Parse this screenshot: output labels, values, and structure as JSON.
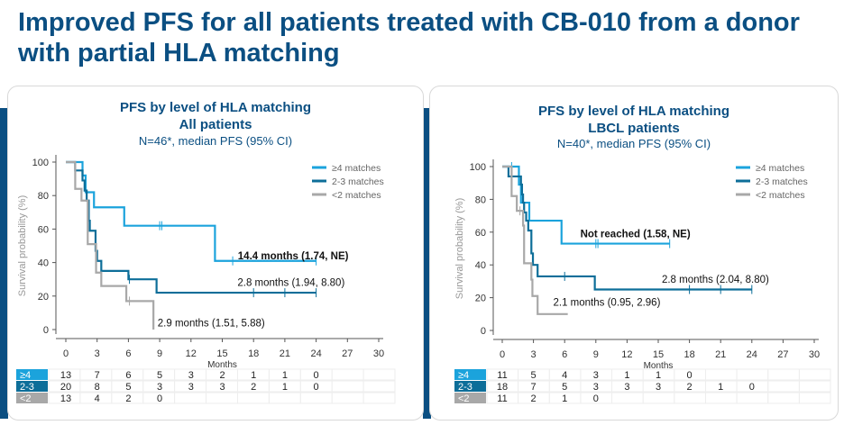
{
  "title": "Improved PFS for all patients treated with CB-010 from a donor with partial HLA matching",
  "colors": {
    "ge4": "#1ba3dc",
    "m23": "#0d6e99",
    "lt2": "#a8a8a8",
    "brand": "#0b4f82"
  },
  "chart_data": [
    {
      "type": "line",
      "title": "PFS by level of HLA matching",
      "subtitle": "All patients",
      "note": "N=46*, median PFS (95% CI)",
      "xlabel": "Months",
      "ylabel": "Survival probability (%)",
      "xlim": [
        0,
        30
      ],
      "ylim": [
        0,
        100
      ],
      "xticks": [
        "0",
        "3",
        "6",
        "9",
        "12",
        "15",
        "18",
        "21",
        "24",
        "27",
        "30"
      ],
      "yticks": [
        "0",
        "20",
        "40",
        "60",
        "80",
        "100"
      ],
      "legend": [
        "≥4 matches",
        "2-3 matches",
        "<2 matches"
      ],
      "legend_position": "top-right",
      "series": [
        {
          "name": "≥4 matches",
          "key": "ge4",
          "steps": [
            [
              0,
              100
            ],
            [
              1.6,
              92
            ],
            [
              1.9,
              82
            ],
            [
              2.7,
              73
            ],
            [
              5.6,
              62
            ],
            [
              14.3,
              41
            ],
            [
              24,
              41
            ]
          ],
          "censors": [
            [
              9.0,
              62
            ],
            [
              9.2,
              62
            ],
            [
              16.0,
              41
            ],
            [
              24,
              41
            ]
          ],
          "annotation": "14.4 months (1.74, NE)",
          "bold": true,
          "ann_at": [
            21.8,
            42
          ]
        },
        {
          "name": "2-3 matches",
          "key": "m23",
          "steps": [
            [
              0,
              100
            ],
            [
              0.9,
              95
            ],
            [
              1.6,
              89
            ],
            [
              1.8,
              83
            ],
            [
              2.0,
              77
            ],
            [
              2.2,
              65
            ],
            [
              2.3,
              59
            ],
            [
              2.85,
              47
            ],
            [
              3.0,
              41
            ],
            [
              3.4,
              35
            ],
            [
              6.0,
              30
            ],
            [
              8.7,
              22
            ],
            [
              24,
              22
            ]
          ],
          "censors": [
            [
              6.1,
              30
            ],
            [
              18,
              22
            ],
            [
              21,
              22
            ],
            [
              24,
              22
            ]
          ],
          "annotation": "2.8 months (1.94, 8.80)",
          "bold": false,
          "ann_at": [
            21.6,
            26
          ]
        },
        {
          "name": "<2 matches",
          "key": "lt2",
          "steps": [
            [
              0,
              100
            ],
            [
              0.9,
              84
            ],
            [
              1.5,
              77
            ],
            [
              2.1,
              51
            ],
            [
              2.9,
              34
            ],
            [
              3.4,
              26
            ],
            [
              5.8,
              17
            ],
            [
              8.4,
              0
            ]
          ],
          "censors": [
            [
              6.1,
              17
            ]
          ],
          "annotation": "2.9 months (1.51, 5.88)",
          "bold": false,
          "ann_at": [
            8.8,
            2
          ]
        }
      ],
      "risk_table": {
        "rows": [
          {
            "label": "≥4",
            "key": "ge4",
            "values": [
              "13",
              "7",
              "6",
              "5",
              "3",
              "2",
              "1",
              "1",
              "0"
            ]
          },
          {
            "label": "2-3",
            "key": "m23",
            "values": [
              "20",
              "8",
              "5",
              "3",
              "3",
              "3",
              "2",
              "1",
              "0"
            ]
          },
          {
            "label": "<2",
            "key": "lt2",
            "values": [
              "13",
              "4",
              "2",
              "0"
            ]
          }
        ]
      }
    },
    {
      "type": "line",
      "title": "PFS by level of HLA matching",
      "subtitle": "LBCL patients",
      "note": "N=40*, median PFS (95% CI)",
      "xlabel": "Months",
      "ylabel": "Survival probability (%)",
      "xlim": [
        0,
        30
      ],
      "ylim": [
        0,
        100
      ],
      "xticks": [
        "0",
        "3",
        "6",
        "9",
        "12",
        "15",
        "18",
        "21",
        "24",
        "27",
        "30"
      ],
      "yticks": [
        "0",
        "20",
        "40",
        "60",
        "80",
        "100"
      ],
      "legend": [
        "≥4 matches",
        "2-3 matches",
        "<2 matches"
      ],
      "legend_position": "top-right",
      "series": [
        {
          "name": "≥4 matches",
          "key": "ge4",
          "steps": [
            [
              0,
              100
            ],
            [
              1.6,
              89
            ],
            [
              1.8,
              78
            ],
            [
              2.6,
              67
            ],
            [
              5.7,
              53
            ],
            [
              16.1,
              53
            ]
          ],
          "censors": [
            [
              0.9,
              100
            ],
            [
              9.0,
              53
            ],
            [
              9.2,
              53
            ],
            [
              16.1,
              53
            ]
          ],
          "annotation": "Not reached  (1.58, NE)",
          "bold": true,
          "ann_at": [
            12.8,
            57
          ]
        },
        {
          "name": "2-3 matches",
          "key": "m23",
          "steps": [
            [
              0,
              100
            ],
            [
              0.6,
              94
            ],
            [
              1.8,
              89
            ],
            [
              1.9,
              83
            ],
            [
              2.0,
              78
            ],
            [
              2.1,
              72
            ],
            [
              2.3,
              67
            ],
            [
              2.5,
              61
            ],
            [
              2.8,
              47
            ],
            [
              2.95,
              40
            ],
            [
              3.4,
              33
            ],
            [
              8.9,
              25
            ],
            [
              24,
              25
            ]
          ],
          "censors": [
            [
              6.0,
              33
            ],
            [
              18,
              25
            ],
            [
              21,
              25
            ],
            [
              24,
              25
            ]
          ],
          "annotation": "2.8 months (2.04, 8.80)",
          "bold": false,
          "ann_at": [
            20.5,
            29
          ]
        },
        {
          "name": "<2 matches",
          "key": "lt2",
          "steps": [
            [
              0,
              100
            ],
            [
              0.9,
              82
            ],
            [
              1.4,
              73
            ],
            [
              2.0,
              64
            ],
            [
              2.1,
              41
            ],
            [
              2.8,
              31
            ],
            [
              2.9,
              21
            ],
            [
              3.4,
              10
            ],
            [
              6.3,
              10
            ]
          ],
          "censors": [
            [
              1.7,
              73
            ]
          ],
          "annotation": "2.1 months (0.95, 2.96)",
          "bold": false,
          "ann_at": [
            4.9,
            15
          ]
        }
      ],
      "risk_table": {
        "rows": [
          {
            "label": "≥4",
            "key": "ge4",
            "values": [
              "11",
              "5",
              "4",
              "3",
              "1",
              "1",
              "0"
            ]
          },
          {
            "label": "2-3",
            "key": "m23",
            "values": [
              "18",
              "7",
              "5",
              "3",
              "3",
              "3",
              "2",
              "1",
              "0"
            ]
          },
          {
            "label": "<2",
            "key": "lt2",
            "values": [
              "11",
              "2",
              "1",
              "0"
            ]
          }
        ]
      }
    }
  ]
}
